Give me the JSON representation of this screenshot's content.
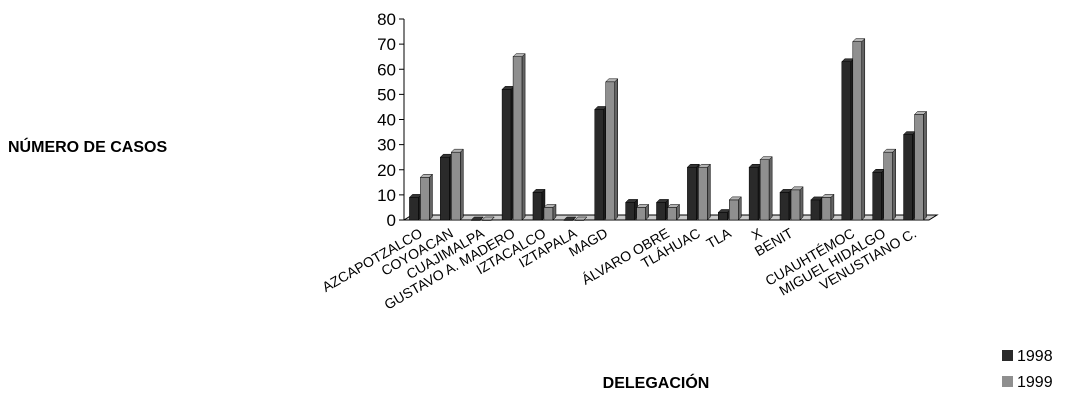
{
  "chart_data": {
    "type": "bar",
    "title": "",
    "ylabel": "NÚMERO DE CASOS",
    "xlabel": "DELEGACIÓN",
    "ylim": [
      0,
      80
    ],
    "yticks": [
      0,
      10,
      20,
      30,
      40,
      50,
      60,
      70,
      80
    ],
    "grid": false,
    "legend_position": "bottom-right",
    "categories": [
      "AZCAPOTZALCO",
      "COYOACAN",
      "CUAJIMALPA",
      "GUSTAVO A. MADERO",
      "IZTACALCO",
      "IZTAPALA",
      "MAGD",
      "",
      "ÁLVARO OBRE",
      "TLÁHUAC",
      "TLA",
      "X",
      "BENIT",
      "",
      "CUAUHTÉMOC",
      "MIGUEL HIDALGO",
      "VENUSTIANO C."
    ],
    "series": [
      {
        "name": "1998",
        "color": "#2a2a2a",
        "values": [
          9,
          25,
          0,
          52,
          11,
          0,
          44,
          7,
          7,
          21,
          3,
          21,
          11,
          8,
          63,
          19,
          34
        ]
      },
      {
        "name": "1999",
        "color": "#8f8f8f",
        "values": [
          17,
          27,
          0,
          65,
          5,
          0,
          55,
          5,
          5,
          21,
          8,
          24,
          12,
          9,
          71,
          27,
          42
        ]
      }
    ]
  }
}
